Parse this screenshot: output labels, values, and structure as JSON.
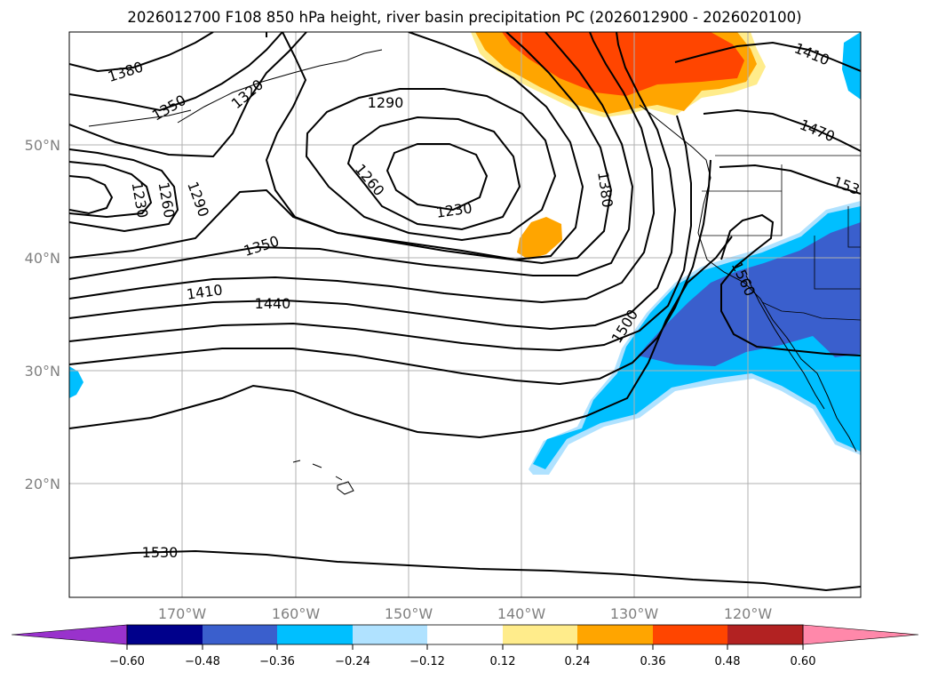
{
  "title": "2026012700 F108 850 hPa height, river basin precipitation PC (2026012900 - 2026020100)",
  "lat_labels": [
    "50°N",
    "40°N",
    "30°N",
    "20°N"
  ],
  "lon_labels": [
    "170°W",
    "160°W",
    "150°W",
    "140°W",
    "130°W",
    "120°W"
  ],
  "contour_labels": [
    "1380",
    "1350",
    "1320",
    "1290",
    "1260",
    "1230",
    "1230",
    "1260",
    "1290",
    "1350",
    "1410",
    "1440",
    "1380",
    "1500",
    "1560",
    "1410",
    "1470",
    "153",
    "1530"
  ],
  "colorbar": {
    "ticks": [
      "−0.60",
      "−0.48",
      "−0.36",
      "−0.24",
      "−0.12",
      "0.12",
      "0.24",
      "0.36",
      "0.48",
      "0.60"
    ],
    "colors": [
      "#9932CC",
      "#00008B",
      "#3A5FCD",
      "#00BFFF",
      "#B0E2FF",
      "#FFFFFF",
      "#FFEC8B",
      "#FFA500",
      "#FF4500",
      "#B22222",
      "#FF88AA"
    ]
  },
  "fill_colors": {
    "neg_dark": "#3A5FCD",
    "neg_mid": "#00BFFF",
    "neg_light": "#B0E2FF",
    "pos_light": "#FFEC8B",
    "pos_mid": "#FFA500",
    "pos_dark": "#FF4500"
  }
}
